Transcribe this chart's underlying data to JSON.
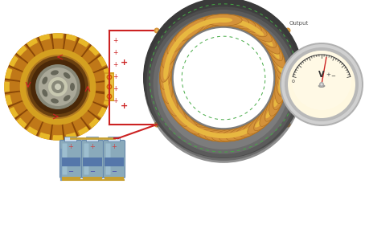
{
  "bg_color": "#ffffff",
  "wire_red": "#cc2222",
  "wire_orange": "#d4923a",
  "wire_copper": "#c8903a",
  "coil_orange": "#d4923a",
  "coil_dark_orange": "#b07020",
  "coil_light": "#e8b840",
  "torus_dark": "#3a3a3a",
  "torus_mid": "#666666",
  "torus_light": "#999999",
  "motor_gold1": "#d4a020",
  "motor_gold2": "#e8c040",
  "motor_brown": "#8a5010",
  "motor_dark": "#4a3010",
  "motor_segment": "#c07818",
  "battery_body": "#8aaabb",
  "battery_highlight": "#aaccdd",
  "battery_dark": "#6688aa",
  "battery_cap": "#ccddee",
  "battery_base_gold": "#c8a030",
  "meter_rim_outer": "#aaaaaa",
  "meter_rim_inner": "#dddddd",
  "meter_face": "#fdf5d8",
  "meter_face_glow": "#fff8e0",
  "node_color": "#d4923a",
  "output_label": "Output",
  "figsize": [
    4.54,
    2.8
  ],
  "dpi": 100
}
